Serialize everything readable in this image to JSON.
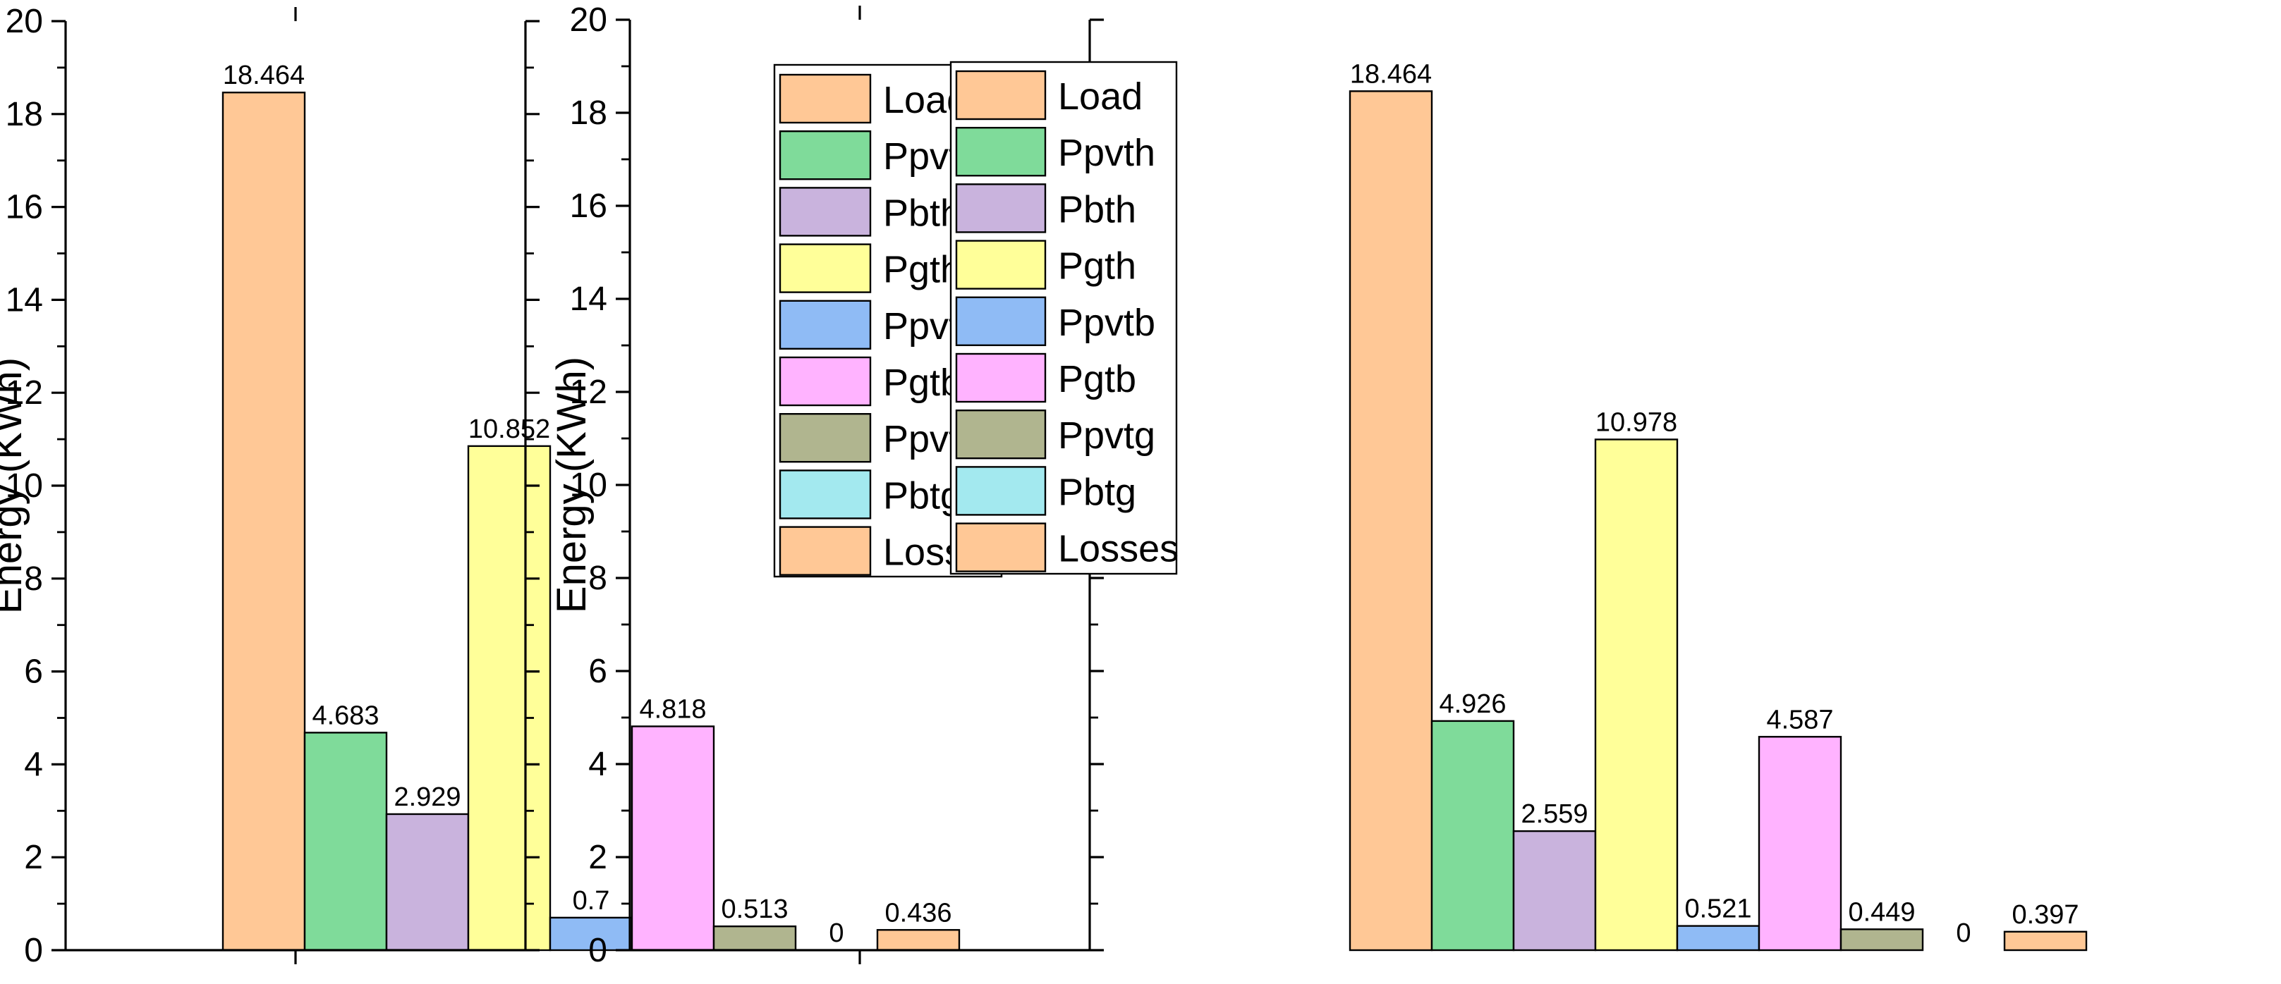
{
  "chart_data": [
    {
      "type": "bar",
      "title": "",
      "xlabel": "",
      "ylabel": "Energy (KWh)",
      "ylim": [
        0,
        20
      ],
      "yticks": [
        "0",
        "2",
        "4",
        "6",
        "8",
        "10",
        "12",
        "14",
        "16",
        "18",
        "20"
      ],
      "grid": false,
      "legend_position": "top-right",
      "categories": [
        "Load",
        "Ppvth",
        "Pbth",
        "Pgth",
        "Ppvtb",
        "Pgtb",
        "Ppvtg",
        "Pbtg",
        "Losses"
      ],
      "values": [
        18.464,
        4.683,
        2.929,
        10.852,
        0.7,
        4.818,
        0.513,
        0,
        0.436
      ],
      "data_labels": [
        "18.464",
        "4.683",
        "2.929",
        "10.852",
        "0.7",
        "4.818",
        "0.513",
        "0",
        "0.436"
      ]
    },
    {
      "type": "bar",
      "title": "",
      "xlabel": "",
      "ylabel": "Energy (KWh)",
      "ylim": [
        0,
        20
      ],
      "yticks": [
        "0",
        "2",
        "4",
        "6",
        "8",
        "10",
        "12",
        "14",
        "16",
        "18",
        "20"
      ],
      "grid": false,
      "legend_position": "top-right",
      "categories": [
        "Load",
        "Ppvth",
        "Pbth",
        "Pgth",
        "Ppvtb",
        "Pgtb",
        "Ppvtg",
        "Pbtg",
        "Losses"
      ],
      "values": [
        18.464,
        4.926,
        2.559,
        10.978,
        0.521,
        4.587,
        0.449,
        0,
        0.397
      ],
      "data_labels": [
        "18.464",
        "4.926",
        "2.559",
        "10.978",
        "0.521",
        "4.587",
        "0.449",
        "0",
        "0.397"
      ]
    }
  ],
  "colors": {
    "Load": "#ffc896",
    "Ppvth": "#7fdb9a",
    "Pbth": "#c9b3dd",
    "Pgth": "#ffff99",
    "Ppvtb": "#8fbbf5",
    "Pgtb": "#ffb3ff",
    "Ppvtg": "#b0b58f",
    "Pbtg": "#a3e9ef",
    "Losses": "#ffc896",
    "axis": "#000000",
    "bar_edge": "#000000"
  }
}
